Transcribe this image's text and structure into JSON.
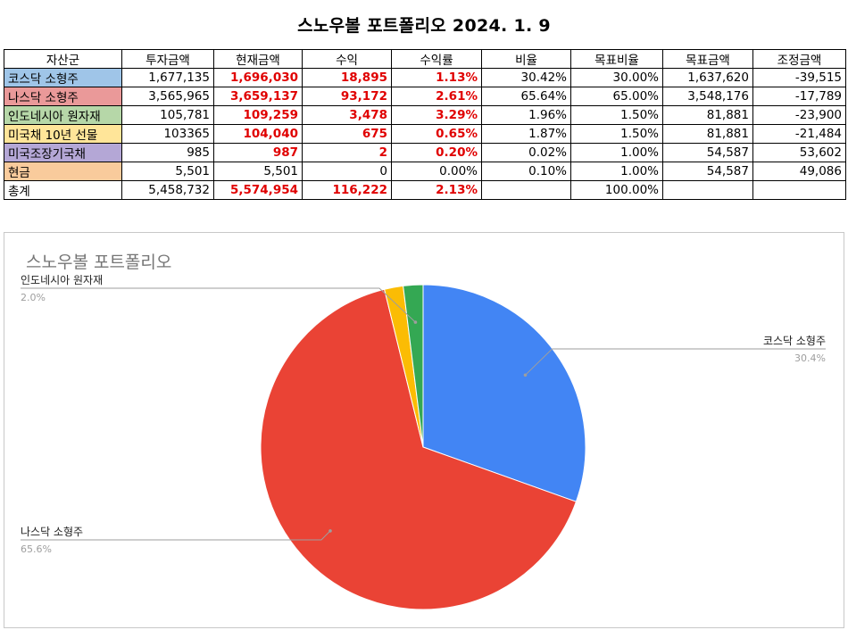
{
  "page": {
    "title": "스노우볼 포트폴리오 2024. 1. 9"
  },
  "table": {
    "headers": [
      "자산군",
      "투자금액",
      "현재금액",
      "수익",
      "수익률",
      "비율",
      "목표비율",
      "목표금액",
      "조정금액"
    ],
    "rows": [
      {
        "asset": "코스닥 소형주",
        "color": "#9fc5e8",
        "invested": "1,677,135",
        "current": "1,696,030",
        "profit": "18,895",
        "return": "1.13%",
        "ratio": "30.42%",
        "target_ratio": "30.00%",
        "target_amount": "1,637,620",
        "adjust": "-39,515",
        "red": true
      },
      {
        "asset": "나스닥 소형주",
        "color": "#ea9999",
        "invested": "3,565,965",
        "current": "3,659,137",
        "profit": "93,172",
        "return": "2.61%",
        "ratio": "65.64%",
        "target_ratio": "65.00%",
        "target_amount": "3,548,176",
        "adjust": "-17,789",
        "red": true
      },
      {
        "asset": "인도네시아 원자재",
        "color": "#b6d7a8",
        "invested": "105,781",
        "current": "109,259",
        "profit": "3,478",
        "return": "3.29%",
        "ratio": "1.96%",
        "target_ratio": "1.50%",
        "target_amount": "81,881",
        "adjust": "-23,900",
        "red": true
      },
      {
        "asset": "미국채 10년 선물",
        "color": "#ffe599",
        "invested": "103365",
        "current": "104,040",
        "profit": "675",
        "return": "0.65%",
        "ratio": "1.87%",
        "target_ratio": "1.50%",
        "target_amount": "81,881",
        "adjust": "-21,484",
        "red": true
      },
      {
        "asset": "미국조장기국채",
        "color": "#b4a7d6",
        "invested": "985",
        "current": "987",
        "profit": "2",
        "return": "0.20%",
        "ratio": "0.02%",
        "target_ratio": "1.00%",
        "target_amount": "54,587",
        "adjust": "53,602",
        "red": true
      },
      {
        "asset": "현금",
        "color": "#f9cb9c",
        "invested": "5,501",
        "current": "5,501",
        "profit": "0",
        "return": "0.00%",
        "ratio": "0.10%",
        "target_ratio": "1.00%",
        "target_amount": "54,587",
        "adjust": "49,086",
        "red": false
      },
      {
        "asset": "총계",
        "color": "#ffffff",
        "invested": "5,458,732",
        "current": "5,574,954",
        "profit": "116,222",
        "return": "2.13%",
        "ratio": "",
        "target_ratio": "100.00%",
        "target_amount": "",
        "adjust": "",
        "red": true
      }
    ]
  },
  "chart_data": {
    "type": "pie",
    "title": "스노우볼 포트폴리오",
    "start_angle_deg": 0,
    "slices": [
      {
        "label": "코스닥 소형주",
        "value": 1696030,
        "percent_label": "30.4%",
        "color": "#4285f4",
        "show_label": true
      },
      {
        "label": "나스닥 소형주",
        "value": 3659137,
        "percent_label": "65.6%",
        "color": "#ea4335",
        "show_label": true
      },
      {
        "label": "미국채 10년 선물",
        "value": 104040,
        "percent_label": "",
        "color": "#fbbc04",
        "show_label": false
      },
      {
        "label": "인도네시아 원자재",
        "value": 109259,
        "percent_label": "2.0%",
        "color": "#34a853",
        "show_label": true
      }
    ]
  }
}
